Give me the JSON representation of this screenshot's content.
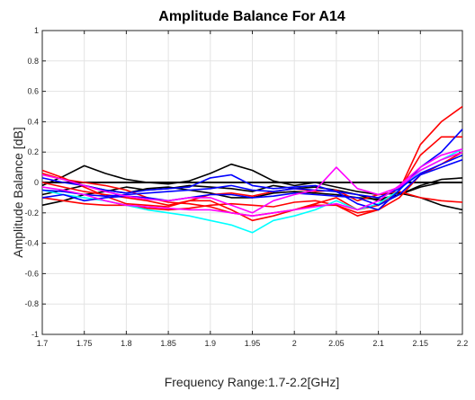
{
  "chart_data": {
    "type": "line",
    "title": "Amplitude Balance For A14",
    "xlabel": "Frequency Range:1.7-2.2[GHz]",
    "ylabel": "Amplitude Balance [dB]",
    "xlim": [
      1.7,
      2.2
    ],
    "ylim": [
      -1,
      1
    ],
    "xticks": [
      1.7,
      1.75,
      1.8,
      1.85,
      1.9,
      1.95,
      2.0,
      2.05,
      2.1,
      2.15,
      2.2
    ],
    "xtick_labels": [
      "1.7",
      "1.75",
      "1.8",
      "1.85",
      "1.9",
      "1.95",
      "2",
      "2.05",
      "2.1",
      "2.15",
      "2.2"
    ],
    "yticks": [
      -1,
      -0.8,
      -0.6,
      -0.4,
      -0.2,
      0,
      0.2,
      0.4,
      0.6,
      0.8,
      1
    ],
    "ytick_labels": [
      "-1",
      "-0.8",
      "-0.6",
      "-0.4",
      "-0.2",
      "0",
      "0.2",
      "0.4",
      "0.6",
      "0.8",
      "1"
    ],
    "grid": true,
    "legend": "none",
    "x": [
      1.7,
      1.725,
      1.75,
      1.775,
      1.8,
      1.825,
      1.85,
      1.875,
      1.9,
      1.925,
      1.95,
      1.975,
      2.0,
      2.025,
      2.05,
      2.075,
      2.1,
      2.125,
      2.15,
      2.175,
      2.2
    ],
    "series": [
      {
        "color": "#000000",
        "values": [
          0,
          0,
          0,
          0,
          0,
          0,
          0,
          0,
          0,
          0,
          0,
          0,
          0,
          0,
          0,
          0,
          0,
          0,
          0,
          0,
          0
        ]
      },
      {
        "color": "#000000",
        "values": [
          -0.02,
          0.04,
          0.11,
          0.06,
          0.02,
          0.0,
          -0.01,
          0.01,
          0.06,
          0.12,
          0.08,
          0.01,
          -0.02,
          0.0,
          -0.03,
          -0.06,
          -0.08,
          -0.07,
          -0.1,
          -0.15,
          -0.18
        ]
      },
      {
        "color": "#000000",
        "values": [
          -0.15,
          -0.12,
          -0.08,
          -0.06,
          -0.03,
          -0.05,
          -0.04,
          -0.02,
          -0.03,
          -0.04,
          -0.06,
          -0.02,
          -0.04,
          -0.03,
          -0.05,
          -0.08,
          -0.12,
          -0.08,
          -0.02,
          0.02,
          0.03
        ]
      },
      {
        "color": "#000000",
        "values": [
          -0.08,
          -0.05,
          -0.02,
          -0.05,
          -0.07,
          -0.04,
          -0.03,
          -0.05,
          -0.07,
          -0.1,
          -0.1,
          -0.07,
          -0.06,
          -0.07,
          -0.08,
          -0.1,
          -0.11,
          -0.08,
          -0.03,
          0.0,
          0.0
        ]
      },
      {
        "color": "#FF0000",
        "values": [
          0.08,
          0.03,
          -0.03,
          -0.09,
          -0.14,
          -0.15,
          -0.16,
          -0.12,
          -0.12,
          -0.18,
          -0.25,
          -0.22,
          -0.18,
          -0.15,
          -0.15,
          -0.2,
          -0.18,
          -0.05,
          0.25,
          0.4,
          0.5
        ]
      },
      {
        "color": "#FF0000",
        "values": [
          0.06,
          0.02,
          0.0,
          -0.02,
          -0.05,
          -0.1,
          -0.13,
          -0.14,
          -0.16,
          -0.2,
          -0.22,
          -0.2,
          -0.18,
          -0.14,
          -0.1,
          -0.18,
          -0.15,
          -0.05,
          0.18,
          0.3,
          0.3
        ]
      },
      {
        "color": "#FF0000",
        "values": [
          0.0,
          -0.03,
          -0.06,
          -0.08,
          -0.1,
          -0.12,
          -0.15,
          -0.12,
          -0.08,
          -0.07,
          -0.09,
          -0.06,
          -0.04,
          -0.06,
          -0.05,
          -0.12,
          -0.08,
          -0.06,
          -0.1,
          -0.12,
          -0.13
        ]
      },
      {
        "color": "#FF0000",
        "values": [
          -0.1,
          -0.12,
          -0.14,
          -0.15,
          -0.15,
          -0.17,
          -0.18,
          -0.17,
          -0.15,
          -0.14,
          -0.15,
          -0.16,
          -0.13,
          -0.12,
          -0.15,
          -0.22,
          -0.18,
          -0.1,
          0.05,
          0.12,
          0.2
        ]
      },
      {
        "color": "#00FFFF",
        "values": [
          -0.05,
          -0.08,
          -0.1,
          -0.12,
          -0.15,
          -0.18,
          -0.2,
          -0.22,
          -0.25,
          -0.28,
          -0.33,
          -0.25,
          -0.22,
          -0.18,
          -0.12,
          -0.18,
          -0.14,
          -0.05,
          0.08,
          0.15,
          0.22
        ]
      },
      {
        "color": "#0000FF",
        "values": [
          0.03,
          0.0,
          -0.02,
          -0.05,
          -0.07,
          -0.05,
          -0.04,
          -0.03,
          0.03,
          0.05,
          -0.02,
          -0.04,
          -0.03,
          -0.02,
          -0.06,
          -0.14,
          -0.18,
          -0.05,
          0.1,
          0.2,
          0.35
        ]
      },
      {
        "color": "#0000FF",
        "values": [
          -0.1,
          -0.08,
          -0.12,
          -0.1,
          -0.09,
          -0.1,
          -0.12,
          -0.1,
          -0.08,
          -0.08,
          -0.1,
          -0.09,
          -0.07,
          -0.08,
          -0.09,
          -0.1,
          -0.15,
          -0.08,
          0.05,
          0.1,
          0.15
        ]
      },
      {
        "color": "#0000FF",
        "values": [
          -0.05,
          -0.06,
          -0.08,
          -0.09,
          -0.08,
          -0.07,
          -0.06,
          -0.05,
          -0.04,
          -0.02,
          -0.05,
          -0.06,
          -0.04,
          -0.05,
          -0.06,
          -0.08,
          -0.1,
          -0.04,
          0.06,
          0.12,
          0.18
        ]
      },
      {
        "color": "#FF00FF",
        "values": [
          0.05,
          0.02,
          -0.02,
          -0.06,
          -0.09,
          -0.11,
          -0.12,
          -0.1,
          -0.1,
          -0.15,
          -0.2,
          -0.12,
          -0.08,
          -0.05,
          0.1,
          -0.04,
          -0.08,
          -0.03,
          0.08,
          0.15,
          0.2
        ]
      },
      {
        "color": "#FF00FF",
        "values": [
          -0.03,
          -0.05,
          -0.08,
          -0.12,
          -0.15,
          -0.16,
          -0.17,
          -0.18,
          -0.18,
          -0.2,
          -0.22,
          -0.2,
          -0.18,
          -0.16,
          -0.14,
          -0.18,
          -0.12,
          -0.02,
          0.1,
          0.18,
          0.22
        ]
      }
    ]
  }
}
